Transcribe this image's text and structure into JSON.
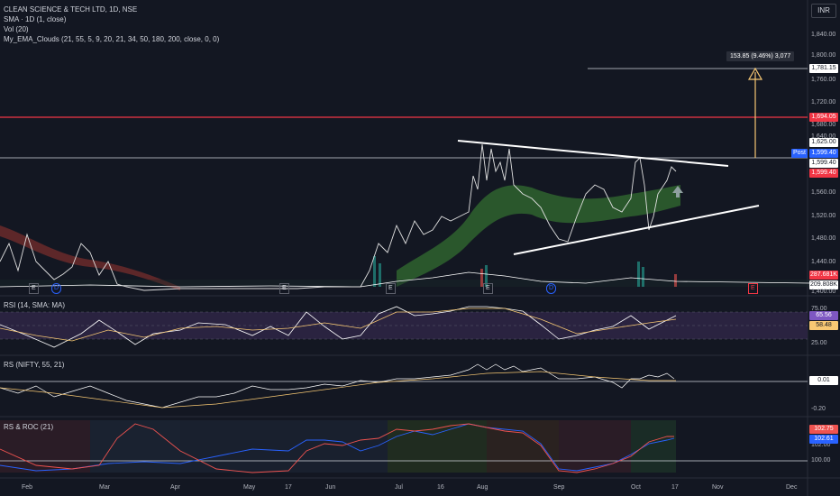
{
  "header": {
    "symbol_line": "CLEAN SCIENCE & TECH LTD, 1D, NSE",
    "indicators": [
      "SMA · 1D (1, close)",
      "Vol (20)",
      "My_EMA_Clouds (21, 55, 5, 9, 20, 21, 34, 50, 180, 200, close, 0, 0)"
    ]
  },
  "currency_button": "INR",
  "price_axis": {
    "ticks": [
      "1,840.00",
      "1,800.00",
      "1,760.00",
      "1,720.00",
      "1,680.00",
      "1,640.00",
      "1,560.00",
      "1,520.00",
      "1,480.00",
      "1,440.00"
    ],
    "tags": {
      "target": "1,781.15",
      "resistance": "1,694.05",
      "level": "1,625.00",
      "post": "Post",
      "post_value": "1,599.40",
      "last": "1,599.40",
      "last_red": "1,599.40",
      "volume": "287.681K",
      "volume_ma": "209.808K",
      "clipped": "1,400.00"
    }
  },
  "measure_label": "153.85 (9.46%) 3,077",
  "panes": {
    "rsi": {
      "label": "RSI (14, SMA: MA)",
      "ticks": [
        "75.00",
        "25.00"
      ],
      "tag_rsi": "65.56",
      "tag_ma": "58.48"
    },
    "rs": {
      "label": "RS (NIFTY, 55, 21)",
      "ticks": [
        "-0.20"
      ],
      "tag": "0.01"
    },
    "rsroc": {
      "label": "RS & ROC (21)",
      "ticks": [
        "102.00",
        "100.00"
      ],
      "tag_a": "102.75",
      "tag_b": "102.61"
    }
  },
  "time_axis": [
    "Feb",
    "Mar",
    "Apr",
    "May",
    "17",
    "Jun",
    "Jul",
    "16",
    "Aug",
    "Sep",
    "Oct",
    "17",
    "Nov",
    "Dec"
  ],
  "event_markers": [
    "E",
    "D",
    "E",
    "E",
    "E",
    "D",
    "E"
  ],
  "colors": {
    "background": "#131722",
    "up": "#26a69a",
    "down": "#ef5350",
    "resistance": "#f23645",
    "trendline": "#ffffff",
    "target": "#f7c873",
    "green_cloud": "#2e5e2e",
    "red_cloud": "#6b2a2a",
    "rsi_band": "#2a2340"
  }
}
